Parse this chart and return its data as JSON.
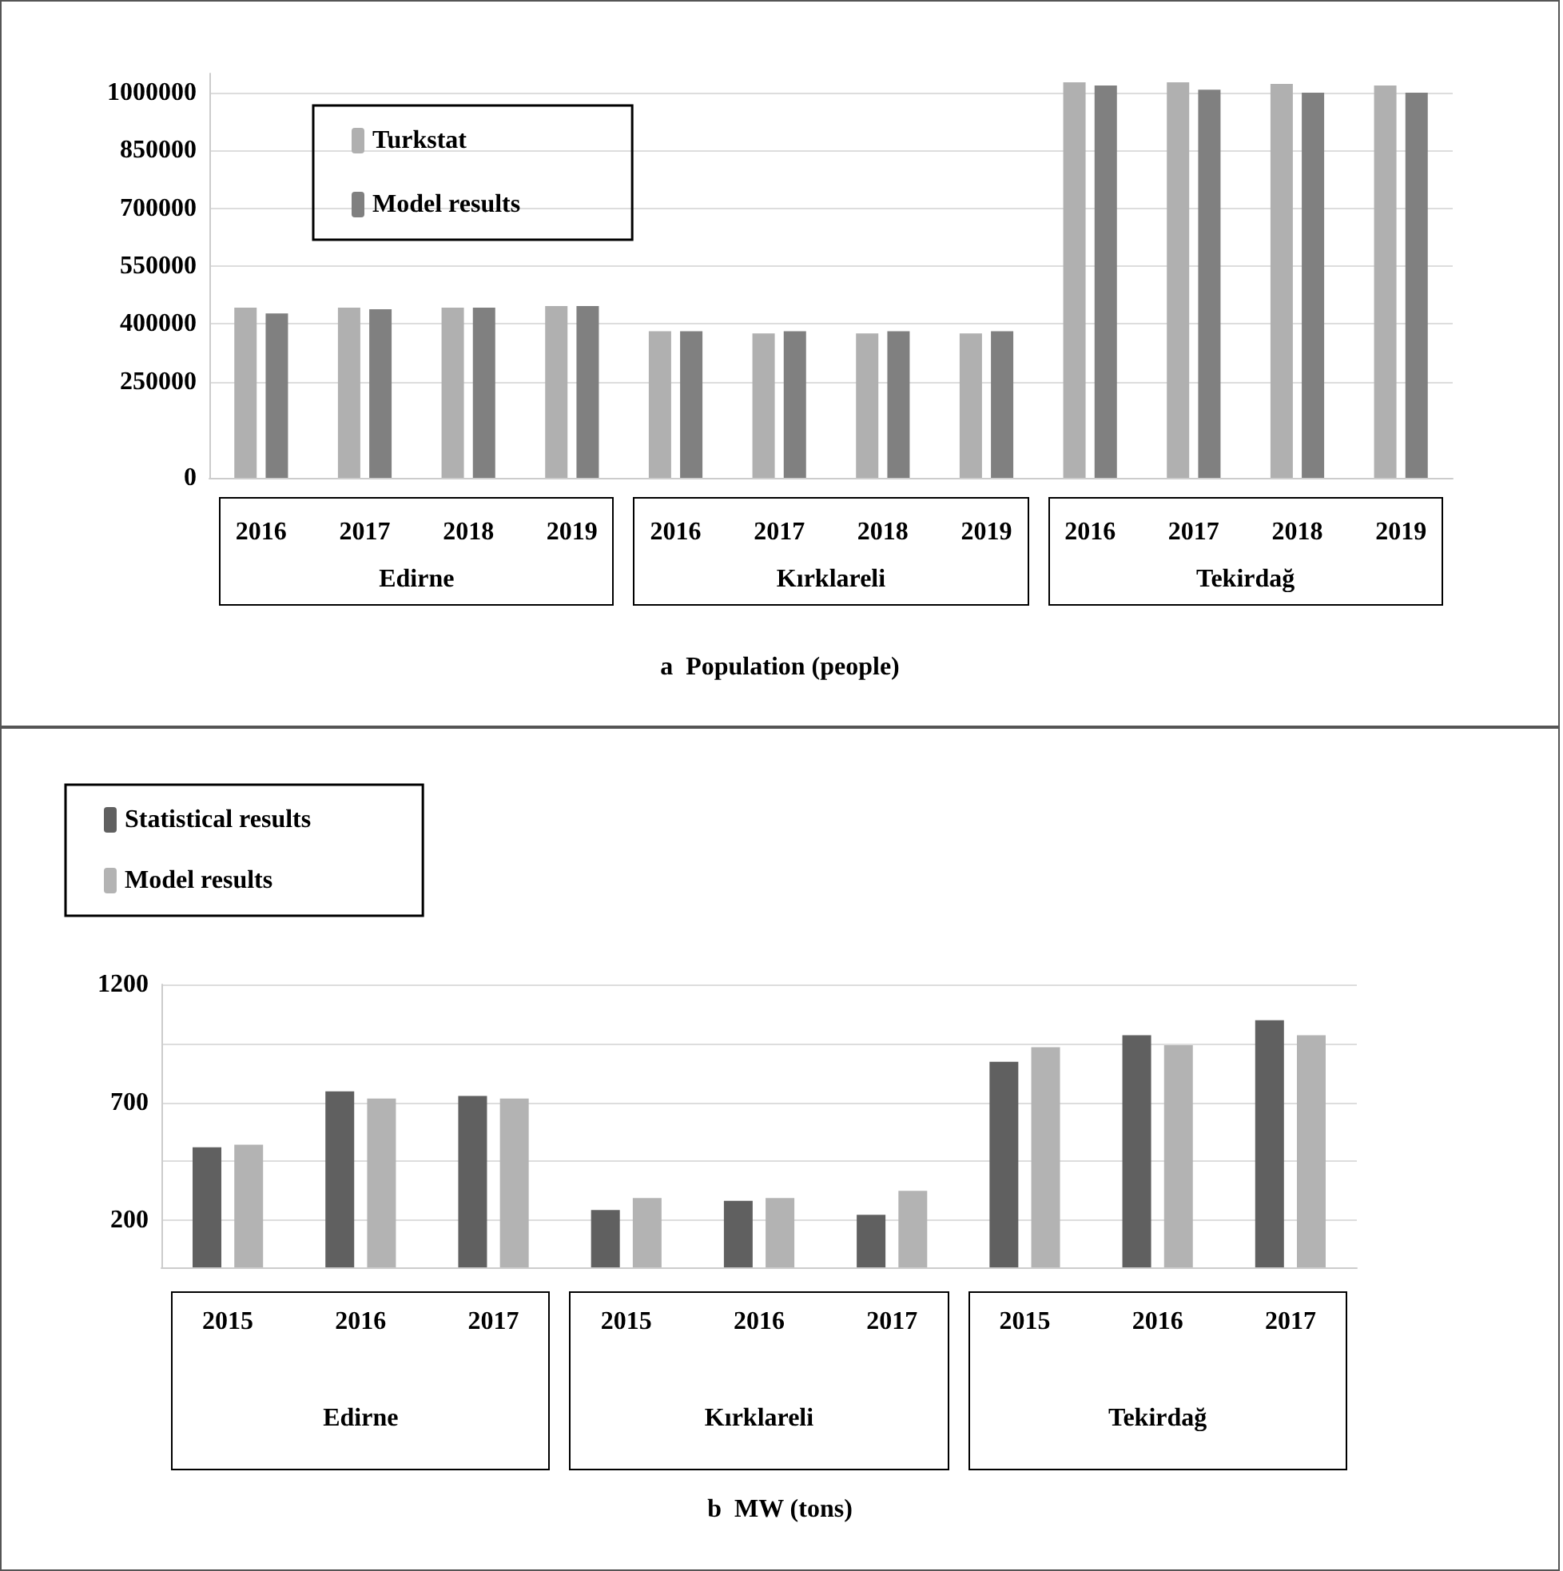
{
  "chart_data": [
    {
      "type": "bar",
      "xlabel": "a  Population (people)",
      "categories": [
        "2016",
        "2017",
        "2018",
        "2019",
        "2016",
        "2017",
        "2018",
        "2019",
        "2016",
        "2017",
        "2018",
        "2019"
      ],
      "annotations": [
        "Edirne",
        "Kırklareli",
        "Tekirdağ"
      ],
      "series": [
        {
          "name": "Turkstat",
          "color": "#b0b0b0",
          "values": [
            442000,
            442000,
            442000,
            446000,
            381000,
            375000,
            375000,
            375000,
            1027000,
            1027000,
            1023000,
            1019000
          ]
        },
        {
          "name": "Model results",
          "color": "#808080",
          "values": [
            427000,
            438000,
            442000,
            446000,
            381000,
            381000,
            381000,
            381000,
            1019000,
            1008000,
            1000000,
            1000000
          ]
        }
      ],
      "ylim": [
        0,
        1050000
      ],
      "yticks": [
        0,
        250000,
        400000,
        550000,
        700000,
        850000,
        1000000
      ],
      "grid": "y",
      "legend": "top left"
    },
    {
      "type": "bar",
      "xlabel": "b  MW (tons)",
      "categories": [
        "2015",
        "2016",
        "2017",
        "2015",
        "2016",
        "2017",
        "2015",
        "2016",
        "2017"
      ],
      "annotations": [
        "Edirne",
        "Kırklareli",
        "Tekirdağ"
      ],
      "series": [
        {
          "name": "Statistical results",
          "color": "#606060",
          "values": [
            509,
            747,
            727,
            243,
            282,
            223,
            872,
            985,
            1048
          ]
        },
        {
          "name": "Model results",
          "color": "#b3b3b3",
          "values": [
            520,
            716,
            716,
            294,
            294,
            325,
            934,
            942,
            985
          ]
        }
      ],
      "ylim": [
        0,
        1200
      ],
      "yticks": [
        200,
        {
          "value": 450,
          "label": null
        },
        700,
        {
          "value": 950,
          "label": null
        },
        1200
      ],
      "grid": "y",
      "legend": "top left"
    }
  ]
}
